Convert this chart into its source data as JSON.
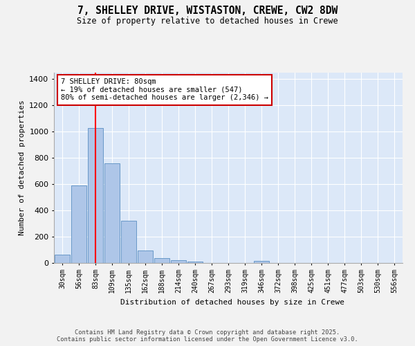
{
  "title_line1": "7, SHELLEY DRIVE, WISTASTON, CREWE, CW2 8DW",
  "title_line2": "Size of property relative to detached houses in Crewe",
  "xlabel": "Distribution of detached houses by size in Crewe",
  "ylabel": "Number of detached properties",
  "bin_labels": [
    "30sqm",
    "56sqm",
    "83sqm",
    "109sqm",
    "135sqm",
    "162sqm",
    "188sqm",
    "214sqm",
    "240sqm",
    "267sqm",
    "293sqm",
    "319sqm",
    "346sqm",
    "372sqm",
    "398sqm",
    "425sqm",
    "451sqm",
    "477sqm",
    "503sqm",
    "530sqm",
    "556sqm"
  ],
  "bar_values": [
    65,
    590,
    1030,
    760,
    320,
    95,
    37,
    22,
    12,
    0,
    0,
    0,
    15,
    0,
    0,
    0,
    0,
    0,
    0,
    0,
    0
  ],
  "bar_color": "#aec6e8",
  "bar_edge_color": "#5a8fc2",
  "background_color": "#dce8f8",
  "grid_color": "#ffffff",
  "red_line_x": 2.0,
  "annotation_text": "7 SHELLEY DRIVE: 80sqm\n← 19% of detached houses are smaller (547)\n80% of semi-detached houses are larger (2,346) →",
  "annotation_box_color": "#ffffff",
  "annotation_border_color": "#cc0000",
  "ylim": [
    0,
    1450
  ],
  "yticks": [
    0,
    200,
    400,
    600,
    800,
    1000,
    1200,
    1400
  ],
  "copyright_text": "Contains HM Land Registry data © Crown copyright and database right 2025.\nContains public sector information licensed under the Open Government Licence v3.0.",
  "fig_bg_color": "#f2f2f2"
}
